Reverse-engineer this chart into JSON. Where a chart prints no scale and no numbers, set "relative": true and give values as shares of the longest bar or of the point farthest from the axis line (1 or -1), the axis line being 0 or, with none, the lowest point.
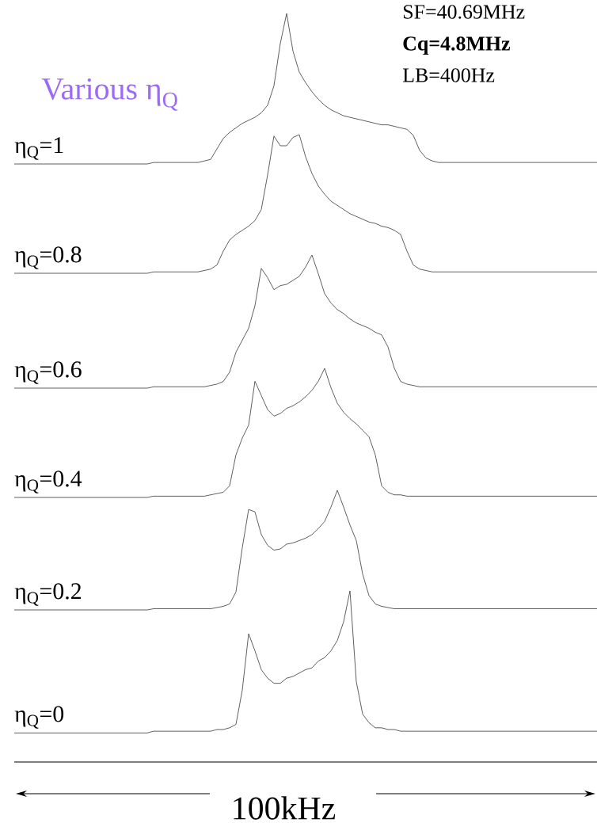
{
  "chart_data": [
    {
      "type": "line",
      "relative": true,
      "title": "Various η$_{Q}$",
      "annotations": [
        "SF=40.69MHz",
        "**Cq=4.8MHz**",
        "LB=400Hz"
      ],
      "categories": [
        null,
        null,
        null,
        null,
        null,
        null,
        null,
        null,
        null,
        null,
        null,
        null,
        null,
        null,
        null,
        null,
        null,
        null,
        null,
        null,
        null,
        null,
        null,
        null,
        null,
        null,
        null,
        null,
        null,
        null,
        null,
        null,
        null,
        null,
        null,
        null,
        null,
        null,
        null,
        null,
        null,
        null,
        null,
        null,
        null,
        null,
        null,
        null,
        null,
        null,
        null,
        null,
        null,
        null,
        null,
        null,
        null,
        null,
        null,
        null,
        null,
        null,
        null,
        null,
        null,
        null,
        null,
        null,
        null,
        null,
        null,
        null,
        null,
        null,
        null,
        null,
        null,
        null,
        null,
        null,
        null,
        null,
        null,
        null,
        null,
        null,
        null,
        null,
        null,
        null,
        null,
        null,
        null
      ],
      "series": [
        {
          "name": "η$_{Q}$=1",
          "color": "#4d4d4d",
          "values": [
            0,
            0,
            0,
            0,
            0,
            0,
            0,
            0,
            0,
            0,
            0,
            0,
            0,
            0,
            0,
            0,
            0,
            0,
            0,
            0,
            0,
            0,
            0.01,
            0.01,
            0.01,
            0.01,
            0.01,
            0.01,
            0.01,
            0.01,
            0.02,
            0.03,
            0.1,
            0.17,
            0.21,
            0.24,
            0.27,
            0.29,
            0.31,
            0.34,
            0.39,
            0.52,
            0.8,
            1,
            0.75,
            0.61,
            0.54,
            0.48,
            0.43,
            0.39,
            0.36,
            0.34,
            0.32,
            0.31,
            0.3,
            0.29,
            0.28,
            0.27,
            0.26,
            0.26,
            0.25,
            0.24,
            0.23,
            0.19,
            0.09,
            0.04,
            0.02,
            0.01,
            0.01,
            0.01,
            0.01,
            0.01,
            0.01,
            0.01,
            0.01,
            0.01,
            0.01,
            0.01,
            0.01,
            0.01,
            0.01,
            0.01,
            0.01,
            0.01,
            0.01,
            0.01,
            0.01,
            0.01,
            0.01,
            0.01,
            0.01,
            0.01,
            0.01
          ]
        }
      ]
    },
    {
      "type": "line",
      "relative": true,
      "categories": [
        null,
        null,
        null,
        null,
        null,
        null,
        null,
        null,
        null,
        null,
        null,
        null,
        null,
        null,
        null,
        null,
        null,
        null,
        null,
        null,
        null,
        null,
        null,
        null,
        null,
        null,
        null,
        null,
        null,
        null,
        null,
        null,
        null,
        null,
        null,
        null,
        null,
        null,
        null,
        null,
        null,
        null,
        null,
        null,
        null,
        null,
        null,
        null,
        null,
        null,
        null,
        null,
        null,
        null,
        null,
        null,
        null,
        null,
        null,
        null,
        null,
        null,
        null,
        null,
        null,
        null,
        null,
        null,
        null,
        null,
        null,
        null,
        null,
        null,
        null,
        null,
        null,
        null,
        null,
        null,
        null,
        null,
        null,
        null,
        null,
        null,
        null,
        null,
        null,
        null,
        null,
        null,
        null
      ],
      "series": [
        {
          "name": "η$_{Q}$=0.8",
          "color": "#4d4d4d",
          "values": [
            0,
            0,
            0,
            0,
            0,
            0,
            0,
            0,
            0,
            0,
            0,
            0,
            0,
            0,
            0,
            0,
            0,
            0,
            0,
            0,
            0,
            0,
            0.01,
            0.01,
            0.01,
            0.01,
            0.01,
            0.01,
            0.01,
            0.01,
            0.02,
            0.03,
            0.06,
            0.16,
            0.24,
            0.28,
            0.31,
            0.34,
            0.38,
            0.46,
            0.71,
            0.99,
            0.92,
            0.92,
            0.98,
            1,
            0.84,
            0.72,
            0.63,
            0.57,
            0.52,
            0.49,
            0.46,
            0.43,
            0.41,
            0.39,
            0.37,
            0.36,
            0.34,
            0.33,
            0.31,
            0.28,
            0.16,
            0.06,
            0.03,
            0.02,
            0.01,
            0.01,
            0.01,
            0.01,
            0.01,
            0.01,
            0.01,
            0.01,
            0.01,
            0.01,
            0.01,
            0.01,
            0.01,
            0.01,
            0.01,
            0.01,
            0.01,
            0.01,
            0.01,
            0.01,
            0.01,
            0.01,
            0.01,
            0.01,
            0.01,
            0.01,
            0.01
          ]
        }
      ]
    },
    {
      "type": "line",
      "relative": true,
      "categories": [
        null,
        null,
        null,
        null,
        null,
        null,
        null,
        null,
        null,
        null,
        null,
        null,
        null,
        null,
        null,
        null,
        null,
        null,
        null,
        null,
        null,
        null,
        null,
        null,
        null,
        null,
        null,
        null,
        null,
        null,
        null,
        null,
        null,
        null,
        null,
        null,
        null,
        null,
        null,
        null,
        null,
        null,
        null,
        null,
        null,
        null,
        null,
        null,
        null,
        null,
        null,
        null,
        null,
        null,
        null,
        null,
        null,
        null,
        null,
        null,
        null,
        null,
        null,
        null,
        null,
        null,
        null,
        null,
        null,
        null,
        null,
        null,
        null,
        null,
        null,
        null,
        null,
        null,
        null,
        null,
        null,
        null,
        null,
        null,
        null,
        null,
        null,
        null,
        null,
        null,
        null,
        null,
        null
      ],
      "series": [
        {
          "name": "η$_{Q}$=0.6",
          "color": "#4d4d4d",
          "values": [
            0,
            0,
            0,
            0,
            0,
            0,
            0,
            0,
            0,
            0,
            0,
            0,
            0,
            0,
            0,
            0,
            0,
            0,
            0,
            0,
            0,
            0,
            0.01,
            0.01,
            0.01,
            0.01,
            0.01,
            0.01,
            0.01,
            0.01,
            0.01,
            0.02,
            0.03,
            0.05,
            0.12,
            0.27,
            0.36,
            0.45,
            0.62,
            0.9,
            0.83,
            0.74,
            0.77,
            0.78,
            0.81,
            0.84,
            0.91,
            1,
            0.86,
            0.71,
            0.64,
            0.59,
            0.56,
            0.52,
            0.49,
            0.47,
            0.45,
            0.42,
            0.4,
            0.31,
            0.15,
            0.05,
            0.03,
            0.02,
            0.01,
            0.01,
            0.01,
            0.01,
            0.01,
            0.01,
            0.01,
            0.01,
            0.01,
            0.01,
            0.01,
            0.01,
            0.01,
            0.01,
            0.01,
            0.01,
            0.01,
            0.01,
            0.01,
            0.01,
            0.01,
            0.01,
            0.01,
            0.01,
            0.01,
            0.01,
            0.01,
            0.01,
            0.01
          ]
        }
      ]
    },
    {
      "type": "line",
      "relative": true,
      "categories": [
        null,
        null,
        null,
        null,
        null,
        null,
        null,
        null,
        null,
        null,
        null,
        null,
        null,
        null,
        null,
        null,
        null,
        null,
        null,
        null,
        null,
        null,
        null,
        null,
        null,
        null,
        null,
        null,
        null,
        null,
        null,
        null,
        null,
        null,
        null,
        null,
        null,
        null,
        null,
        null,
        null,
        null,
        null,
        null,
        null,
        null,
        null,
        null,
        null,
        null,
        null,
        null,
        null,
        null,
        null,
        null,
        null,
        null,
        null,
        null,
        null,
        null,
        null,
        null,
        null,
        null,
        null,
        null,
        null,
        null,
        null,
        null,
        null,
        null,
        null,
        null,
        null,
        null,
        null,
        null,
        null,
        null,
        null,
        null,
        null,
        null,
        null,
        null,
        null,
        null,
        null,
        null,
        null
      ],
      "series": [
        {
          "name": "η$_{Q}$=0.4",
          "color": "#4d4d4d",
          "values": [
            0,
            0,
            0,
            0,
            0,
            0,
            0,
            0,
            0,
            0,
            0,
            0,
            0,
            0,
            0,
            0,
            0,
            0,
            0,
            0,
            0,
            0,
            0.01,
            0.01,
            0.01,
            0.01,
            0.01,
            0.01,
            0.01,
            0.01,
            0.01,
            0.02,
            0.03,
            0.04,
            0.09,
            0.33,
            0.46,
            0.56,
            0.9,
            0.79,
            0.68,
            0.63,
            0.65,
            0.69,
            0.71,
            0.74,
            0.78,
            0.83,
            0.9,
            1,
            0.85,
            0.73,
            0.66,
            0.61,
            0.57,
            0.52,
            0.47,
            0.33,
            0.09,
            0.04,
            0.02,
            0.02,
            0.01,
            0.01,
            0.01,
            0.01,
            0.01,
            0.01,
            0.01,
            0.01,
            0.01,
            0.01,
            0.01,
            0.01,
            0.01,
            0.01,
            0.01,
            0.01,
            0.01,
            0.01,
            0.01,
            0.01,
            0.01,
            0.01,
            0.01,
            0.01,
            0.01,
            0.01,
            0.01,
            0.01,
            0.01,
            0.01,
            0.01
          ]
        }
      ]
    },
    {
      "type": "line",
      "relative": true,
      "categories": [
        null,
        null,
        null,
        null,
        null,
        null,
        null,
        null,
        null,
        null,
        null,
        null,
        null,
        null,
        null,
        null,
        null,
        null,
        null,
        null,
        null,
        null,
        null,
        null,
        null,
        null,
        null,
        null,
        null,
        null,
        null,
        null,
        null,
        null,
        null,
        null,
        null,
        null,
        null,
        null,
        null,
        null,
        null,
        null,
        null,
        null,
        null,
        null,
        null,
        null,
        null,
        null,
        null,
        null,
        null,
        null,
        null,
        null,
        null,
        null,
        null,
        null,
        null,
        null,
        null,
        null,
        null,
        null,
        null,
        null,
        null,
        null,
        null,
        null,
        null,
        null,
        null,
        null,
        null,
        null,
        null,
        null,
        null,
        null,
        null,
        null,
        null,
        null,
        null,
        null,
        null,
        null,
        null
      ],
      "series": [
        {
          "name": "η$_{Q}$=0.2",
          "color": "#4d4d4d",
          "values": [
            0,
            0,
            0,
            0,
            0,
            0,
            0,
            0,
            0,
            0,
            0,
            0,
            0,
            0,
            0,
            0,
            0,
            0,
            0,
            0,
            0,
            0,
            0.01,
            0.01,
            0.01,
            0.01,
            0.01,
            0.01,
            0.01,
            0.01,
            0.01,
            0.01,
            0.02,
            0.03,
            0.05,
            0.15,
            0.52,
            0.84,
            0.82,
            0.63,
            0.54,
            0.5,
            0.51,
            0.55,
            0.56,
            0.58,
            0.6,
            0.63,
            0.68,
            0.74,
            0.86,
            1,
            0.86,
            0.71,
            0.58,
            0.3,
            0.12,
            0.05,
            0.03,
            0.02,
            0.01,
            0.01,
            0.01,
            0.01,
            0.01,
            0.01,
            0.01,
            0.01,
            0.01,
            0.01,
            0.01,
            0.01,
            0.01,
            0.01,
            0.01,
            0.01,
            0.01,
            0.01,
            0.01,
            0.01,
            0.01,
            0.01,
            0.01,
            0.01,
            0.01,
            0.01,
            0.01,
            0.01,
            0.01,
            0.01,
            0.01,
            0.01,
            0.01
          ]
        }
      ]
    },
    {
      "type": "line",
      "relative": true,
      "annotations": [
        "100kHz"
      ],
      "categories": [
        null,
        null,
        null,
        null,
        null,
        null,
        null,
        null,
        null,
        null,
        null,
        null,
        null,
        null,
        null,
        null,
        null,
        null,
        null,
        null,
        null,
        null,
        null,
        null,
        null,
        null,
        null,
        null,
        null,
        null,
        null,
        null,
        null,
        null,
        null,
        null,
        null,
        null,
        null,
        null,
        null,
        null,
        null,
        null,
        null,
        null,
        null,
        null,
        null,
        null,
        null,
        null,
        null,
        null,
        null,
        null,
        null,
        null,
        null,
        null,
        null,
        null,
        null,
        null,
        null,
        null,
        null,
        null,
        null,
        null,
        null,
        null,
        null,
        null,
        null,
        null,
        null,
        null,
        null,
        null,
        null,
        null,
        null,
        null,
        null,
        null,
        null,
        null,
        null,
        null,
        null,
        null,
        null
      ],
      "series": [
        {
          "name": "η$_{Q}$=0",
          "color": "#4d4d4d",
          "values": [
            0.17,
            0.17,
            0.17,
            0.17,
            0.17,
            0.17,
            0.17,
            0.17,
            0.17,
            0.17,
            0.17,
            0.17,
            0.17,
            0.17,
            0.17,
            0.17,
            0.17,
            0.17,
            0.17,
            0.17,
            0.17,
            0.17,
            0.18,
            0.18,
            0.18,
            0.18,
            0.18,
            0.18,
            0.18,
            0.18,
            0.18,
            0.18,
            0.19,
            0.19,
            0.2,
            0.22,
            0.42,
            0.75,
            0.65,
            0.54,
            0.49,
            0.46,
            0.46,
            0.49,
            0.5,
            0.52,
            0.54,
            0.55,
            0.59,
            0.61,
            0.65,
            0.71,
            0.82,
            1,
            0.47,
            0.28,
            0.23,
            0.2,
            0.2,
            0.19,
            0.19,
            0.18,
            0.18,
            0.18,
            0.18,
            0.18,
            0.18,
            0.18,
            0.18,
            0.18,
            0.18,
            0.18,
            0.18,
            0.18,
            0.18,
            0.18,
            0.18,
            0.18,
            0.18,
            0.18,
            0.18,
            0.18,
            0.18,
            0.18,
            0.18,
            0.18,
            0.18,
            0.18,
            0.18,
            0.18,
            0.18,
            0.18,
            0.18
          ]
        }
      ]
    }
  ]
}
